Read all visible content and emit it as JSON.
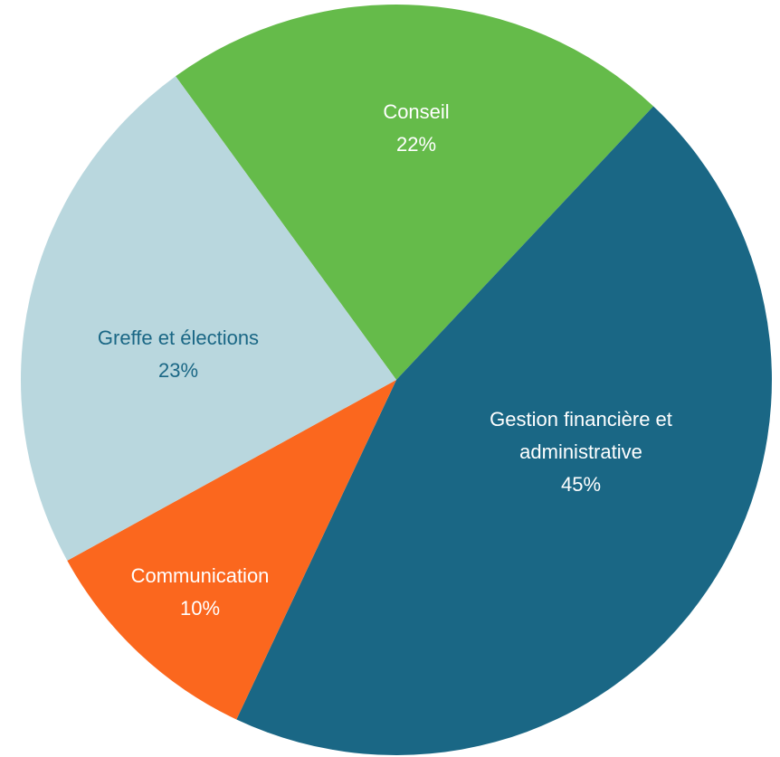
{
  "chart_data": {
    "type": "pie",
    "categories": [
      "Conseil",
      "Gestion financière et administrative",
      "Communication",
      "Greffe et élections"
    ],
    "values": [
      22,
      45,
      10,
      23
    ],
    "value_labels": [
      "22%",
      "45%",
      "10%",
      "23%"
    ],
    "colors": [
      "#65bb4a",
      "#1a6785",
      "#fb671e",
      "#b9d7de"
    ],
    "label_colors": [
      "#ffffff",
      "#ffffff",
      "#ffffff",
      "#1a6785"
    ]
  }
}
